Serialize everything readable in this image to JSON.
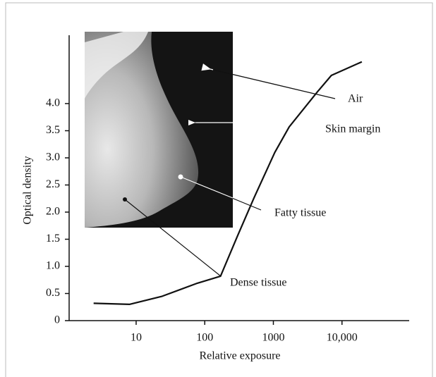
{
  "chart_data": {
    "type": "line",
    "x_label": "Relative exposure",
    "y_label": "Optical density",
    "x_scale": "log",
    "x": [
      2.4,
      8,
      24,
      78,
      170,
      300,
      525,
      1050,
      1700,
      4400,
      7000,
      19500
    ],
    "series": [
      {
        "color": "#111111",
        "values": [
          0.32,
          0.3,
          0.45,
          0.69,
          0.82,
          1.56,
          2.27,
          3.1,
          3.57,
          4.22,
          4.52,
          4.77
        ]
      }
    ],
    "xlim": [
      1,
      100000
    ],
    "ylim": [
      0,
      4.9
    ],
    "xticks": [
      10,
      100,
      1000,
      {
        "value": 10000,
        "label": "10,000"
      }
    ],
    "yticks": [
      0,
      0.5,
      {
        "value": 1,
        "label": "1.0"
      },
      1.5,
      {
        "value": 2,
        "label": "2.0"
      },
      2.5,
      {
        "value": 3,
        "label": "3.0"
      },
      3.5,
      {
        "value": 4,
        "label": "4.0"
      }
    ],
    "annotations": [
      "Air",
      "Skin margin",
      "Fatty tissue",
      "Dense tissue"
    ]
  }
}
